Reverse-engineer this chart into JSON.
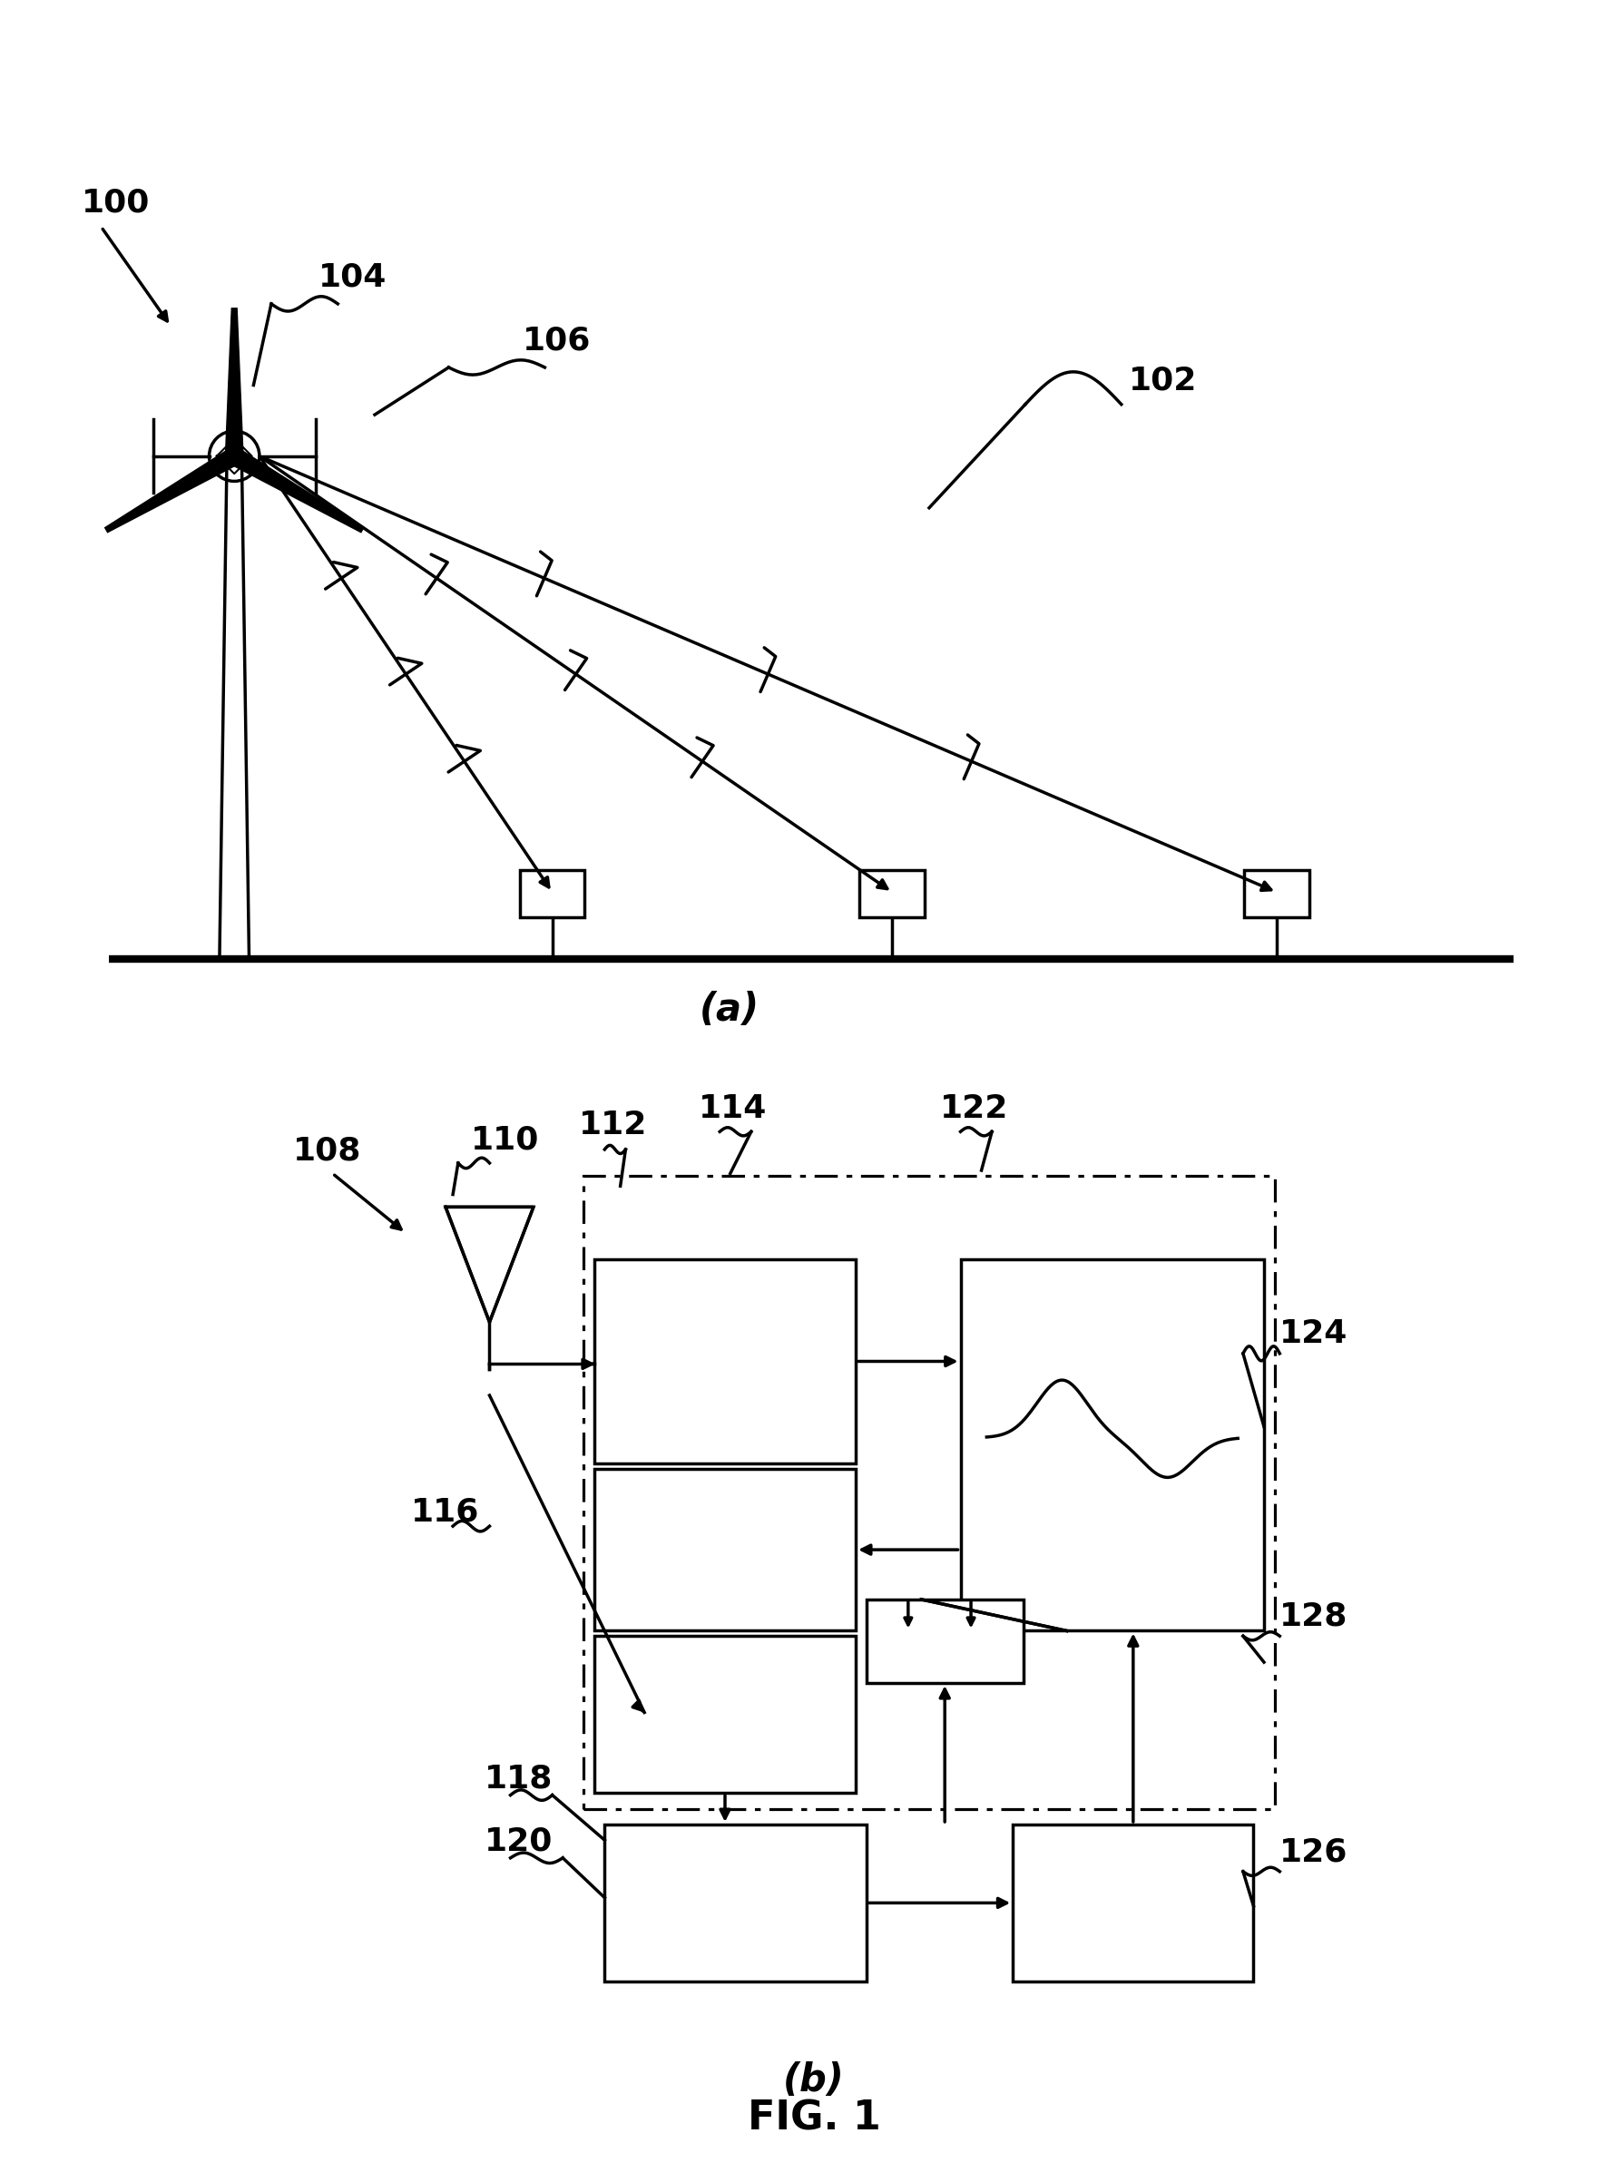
{
  "bg_color": "#ffffff",
  "lc": "#000000",
  "lw": 2.5,
  "lw_heavy": 6,
  "lw_thin": 1.5,
  "fontsize": 26,
  "fontsize_caption": 30,
  "fontsize_fig": 32,
  "labels": {
    "100": "100",
    "102": "102",
    "104": "104",
    "106": "106",
    "108": "108",
    "110": "110",
    "112": "112",
    "114": "114",
    "116": "116",
    "118": "118",
    "120": "120",
    "122": "122",
    "124": "124",
    "126": "126",
    "128": "128"
  },
  "caption_a": "(a)",
  "caption_b": "(b)",
  "fig_label": "FIG. 1"
}
